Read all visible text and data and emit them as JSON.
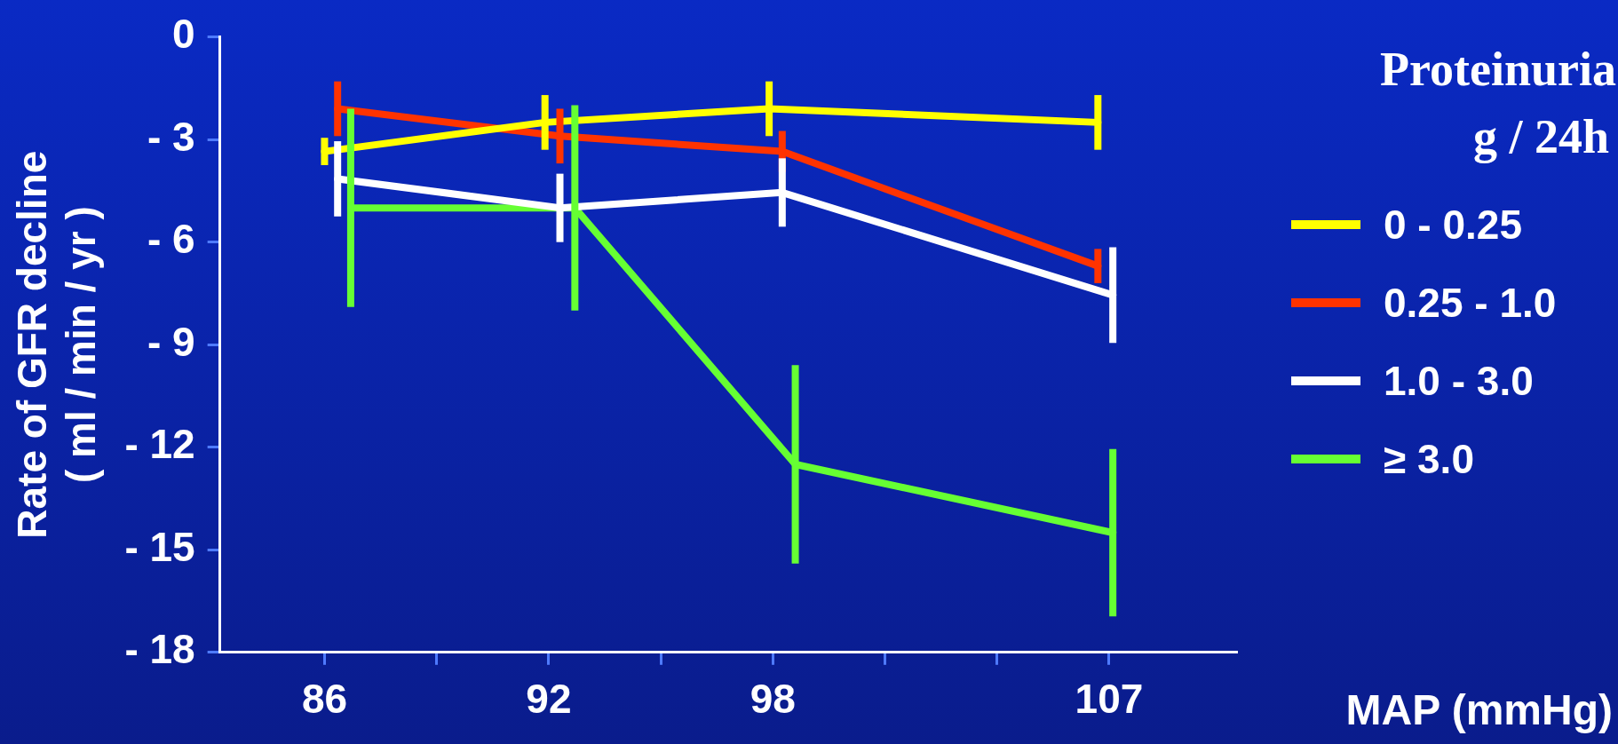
{
  "chart_data": {
    "type": "line",
    "xlabel": "MAP (mmHg)",
    "ylabel": "Rate of GFR decline\n( ml / min / yr )",
    "legend_title": "Proteinuria\ng / 24h",
    "legend": "right",
    "xlim": [
      83.2,
      110.4
    ],
    "xticks": [
      86,
      {
        "value": 89,
        "label": null
      },
      92,
      {
        "value": 95,
        "label": null
      },
      98,
      {
        "value": 101,
        "label": null
      },
      {
        "value": 104,
        "label": null
      },
      107
    ],
    "ylim": [
      -18,
      0
    ],
    "yticks": [
      0,
      {
        "value": -3,
        "label": "- 3"
      },
      {
        "value": -6,
        "label": "- 6"
      },
      {
        "value": -9,
        "label": "- 9"
      },
      {
        "value": -12,
        "label": "- 12"
      },
      {
        "value": -15,
        "label": "- 15"
      },
      {
        "value": -18,
        "label": "- 18"
      }
    ],
    "grid": false,
    "marker": "none",
    "line_style": "solid",
    "series": [
      {
        "name": "0 - 0.25",
        "color": "#ffff00",
        "x": [
          86,
          91.9,
          97.9,
          106.7
        ],
        "values": [
          -3.35,
          -2.5,
          -2.1,
          -2.5
        ],
        "errors": [
          0.4,
          0.8,
          0.8,
          0.8
        ]
      },
      {
        "name": "0.25 - 1.0",
        "color": "#ff3300",
        "x": [
          86.35,
          92.3,
          98.25,
          106.7
        ],
        "values": [
          -2.1,
          -2.9,
          -3.35,
          -6.7
        ],
        "errors": [
          0.8,
          0.8,
          0.6,
          0.5
        ]
      },
      {
        "name": "1.0 - 3.0",
        "color": "#ffffff",
        "x": [
          86.35,
          92.3,
          98.25,
          107.1
        ],
        "values": [
          -4.15,
          -5.0,
          -4.55,
          -7.55
        ],
        "errors": [
          1.1,
          1.0,
          1.0,
          1.4
        ]
      },
      {
        "name": "≥ 3.0",
        "color": "#66ff33",
        "x": [
          86.7,
          92.7,
          98.6,
          107.1
        ],
        "values": [
          -5.0,
          -5.0,
          -12.5,
          -14.5
        ],
        "errors": [
          2.9,
          3.0,
          2.9,
          2.45
        ]
      }
    ]
  }
}
